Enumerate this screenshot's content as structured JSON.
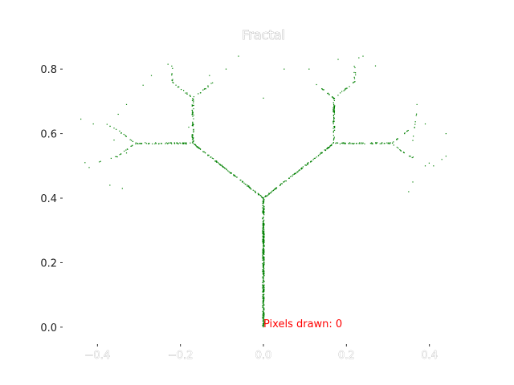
{
  "chart_data": {
    "type": "scatter",
    "title": "Fractal",
    "xlabel": "",
    "ylabel": "",
    "xlim": [
      -0.48,
      0.48
    ],
    "ylim": [
      -0.05,
      0.87
    ],
    "xticks": [
      -0.4,
      -0.2,
      0.0,
      0.2,
      0.4
    ],
    "xtick_labels": [
      "−0.4",
      "−0.2",
      "0.0",
      "0.2",
      "0.4"
    ],
    "yticks": [
      0.0,
      0.2,
      0.4,
      0.6,
      0.8
    ],
    "ytick_labels": [
      "0.0",
      "0.2",
      "0.4",
      "0.6",
      "0.8"
    ],
    "grid": false,
    "marker_color": "#008000",
    "annotation": {
      "text": "Pixels drawn: 0",
      "x": 0.0,
      "y": 0.0,
      "color": "#ff0000"
    },
    "series": [
      {
        "kind": "segments",
        "segments": [
          [
            0.0,
            0.0,
            0.0,
            0.4,
            400
          ],
          [
            0.0,
            0.4,
            -0.17,
            0.57,
            110
          ],
          [
            0.0,
            0.4,
            0.17,
            0.57,
            110
          ],
          [
            -0.17,
            0.57,
            -0.17,
            0.71,
            60
          ],
          [
            0.17,
            0.57,
            0.17,
            0.71,
            60
          ],
          [
            -0.17,
            0.57,
            -0.31,
            0.57,
            55
          ],
          [
            0.17,
            0.57,
            0.31,
            0.57,
            55
          ],
          [
            -0.17,
            0.71,
            -0.22,
            0.76,
            14
          ],
          [
            -0.17,
            0.71,
            -0.12,
            0.76,
            14
          ],
          [
            0.17,
            0.71,
            0.12,
            0.76,
            14
          ],
          [
            0.17,
            0.71,
            0.22,
            0.76,
            14
          ],
          [
            -0.31,
            0.57,
            -0.35,
            0.61,
            10
          ],
          [
            -0.31,
            0.57,
            -0.35,
            0.53,
            10
          ],
          [
            0.31,
            0.57,
            0.35,
            0.61,
            10
          ],
          [
            0.31,
            0.57,
            0.35,
            0.53,
            10
          ],
          [
            -0.22,
            0.76,
            -0.22,
            0.81,
            8
          ],
          [
            0.22,
            0.76,
            0.22,
            0.81,
            8
          ],
          [
            -0.35,
            0.53,
            -0.4,
            0.51,
            6
          ],
          [
            0.35,
            0.53,
            0.4,
            0.51,
            6
          ],
          [
            -0.35,
            0.61,
            -0.38,
            0.63,
            5
          ],
          [
            0.36,
            0.58,
            0.37,
            0.67,
            8
          ]
        ]
      },
      {
        "kind": "points",
        "points": [
          [
            -0.44,
            0.645
          ],
          [
            -0.41,
            0.63
          ],
          [
            -0.35,
            0.66
          ],
          [
            -0.33,
            0.69
          ],
          [
            -0.29,
            0.75
          ],
          [
            -0.27,
            0.78
          ],
          [
            -0.18,
            0.62
          ],
          [
            -0.13,
            0.78
          ],
          [
            -0.09,
            0.8
          ],
          [
            -0.06,
            0.84
          ],
          [
            -0.42,
            0.495
          ],
          [
            -0.37,
            0.44
          ],
          [
            -0.34,
            0.43
          ],
          [
            -0.43,
            0.51
          ],
          [
            -0.33,
            0.54
          ],
          [
            0.05,
            0.8
          ],
          [
            0.0,
            0.71
          ],
          [
            0.11,
            0.8
          ],
          [
            0.18,
            0.83
          ],
          [
            0.24,
            0.84
          ],
          [
            0.27,
            0.81
          ],
          [
            0.37,
            0.69
          ],
          [
            0.39,
            0.63
          ],
          [
            0.44,
            0.6
          ],
          [
            0.43,
            0.52
          ],
          [
            0.44,
            0.53
          ],
          [
            0.36,
            0.45
          ],
          [
            0.39,
            0.5
          ],
          [
            0.41,
            0.5
          ],
          [
            0.35,
            0.42
          ],
          [
            -0.23,
            0.815
          ],
          [
            0.23,
            0.835
          ],
          [
            0.34,
            0.6
          ],
          [
            -0.36,
            0.58
          ]
        ]
      }
    ]
  }
}
